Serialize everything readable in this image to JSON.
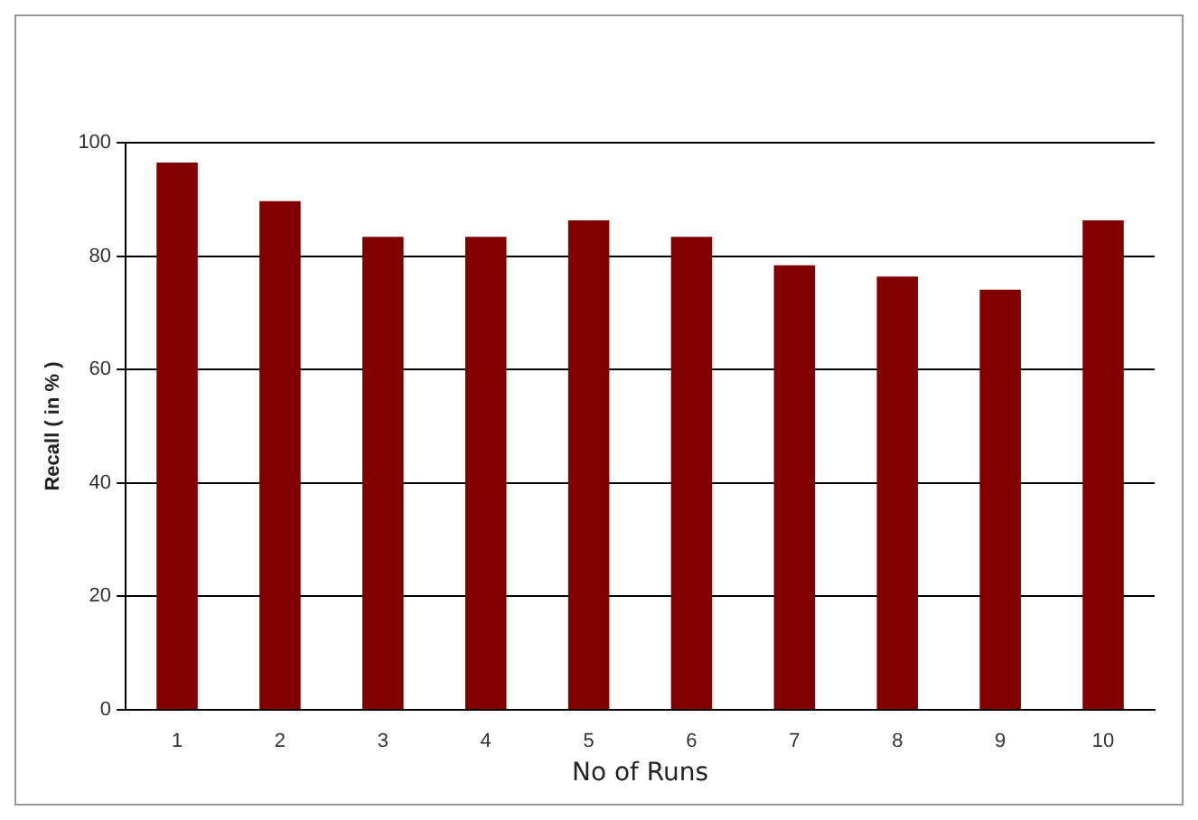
{
  "chart_data": {
    "type": "bar",
    "xlabel": "No of Runs",
    "ylabel": "Recall ( in % )",
    "categories": [
      "1",
      "2",
      "3",
      "4",
      "5",
      "6",
      "7",
      "8",
      "9",
      "10"
    ],
    "values": [
      96.5,
      89.7,
      83.4,
      83.4,
      86.3,
      83.4,
      78.4,
      76.4,
      74.1,
      86.3
    ],
    "color": "#800000",
    "ylim": [
      0,
      100
    ],
    "yticks": [
      0,
      20,
      40,
      60,
      80,
      100
    ],
    "grid": "y",
    "legend": false
  }
}
